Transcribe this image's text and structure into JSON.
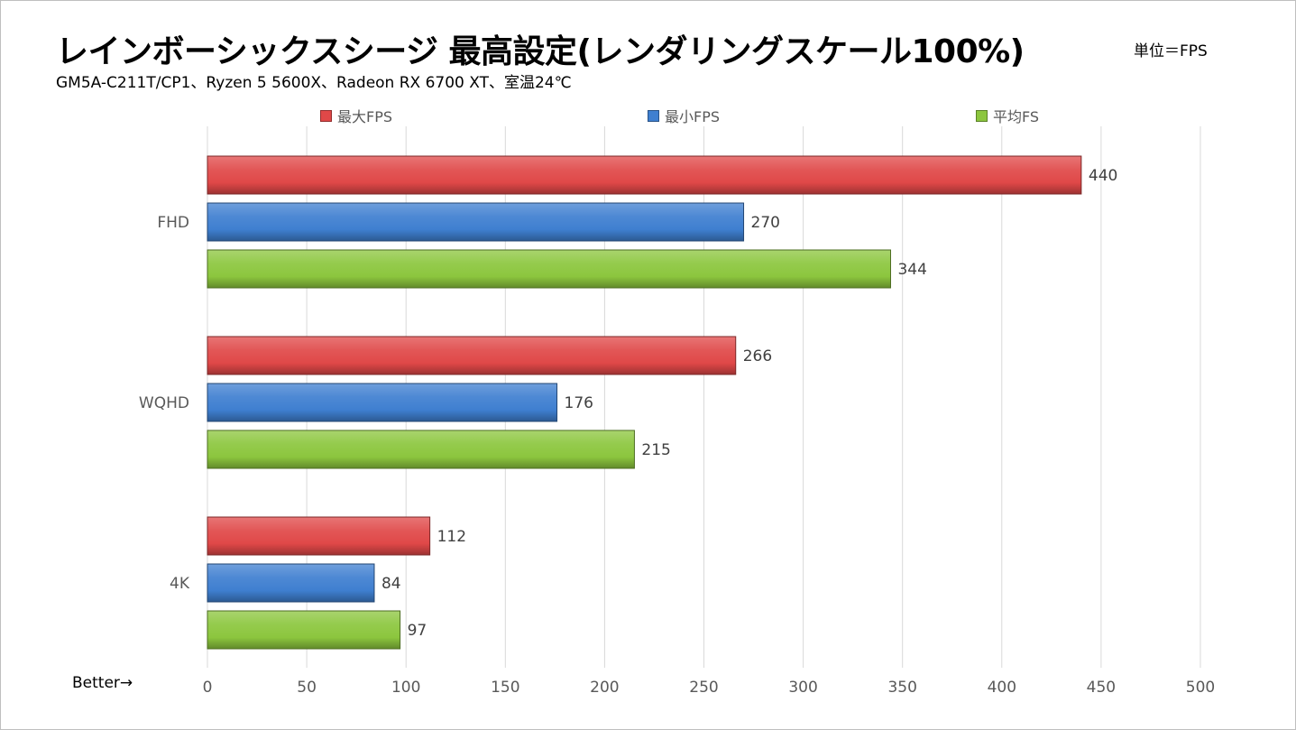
{
  "title": "レインボーシックスシージ 最高設定(レンダリングスケール100%)",
  "subtitle": "GM5A-C211T/CP1、Ryzen 5 5600X、Radeon RX 6700 XT、室温24℃",
  "unit_label": "単位＝FPS",
  "better_label": "Better→",
  "legend": [
    {
      "label": "最大FPS",
      "color": "#e04848"
    },
    {
      "label": "最小FPS",
      "color": "#3f7fd0"
    },
    {
      "label": "平均FS",
      "color": "#8cc63e"
    }
  ],
  "chart_data": {
    "type": "bar",
    "orientation": "horizontal",
    "categories": [
      "FHD",
      "WQHD",
      "4K"
    ],
    "series": [
      {
        "name": "最大FPS",
        "values": [
          440,
          266,
          112
        ]
      },
      {
        "name": "最小FPS",
        "values": [
          270,
          176,
          84
        ]
      },
      {
        "name": "平均FS",
        "values": [
          344,
          215,
          97
        ]
      }
    ],
    "xlim": [
      0,
      500
    ],
    "x_ticks": [
      0,
      50,
      100,
      150,
      200,
      250,
      300,
      350,
      400,
      450,
      500
    ],
    "grid": true,
    "legend_position": "top",
    "data_labels": true
  }
}
